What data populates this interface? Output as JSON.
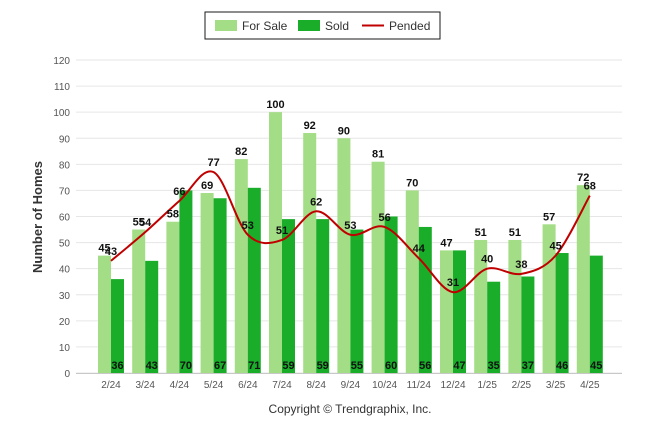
{
  "chart_data": {
    "type": "bar",
    "ylabel": "Number of Homes",
    "ylim": [
      0,
      120
    ],
    "yticks": [
      0,
      10,
      20,
      30,
      40,
      50,
      60,
      70,
      80,
      90,
      100,
      110,
      120
    ],
    "grid": true,
    "legend_position": "top-center",
    "categories": [
      "2/24",
      "3/24",
      "4/24",
      "5/24",
      "6/24",
      "7/24",
      "8/24",
      "9/24",
      "10/24",
      "11/24",
      "12/24",
      "1/25",
      "2/25",
      "3/25",
      "4/25"
    ],
    "series": [
      {
        "name": "For Sale",
        "type": "bar",
        "color": "#a3dd85",
        "values": [
          45,
          55,
          58,
          69,
          82,
          100,
          92,
          90,
          81,
          70,
          47,
          51,
          51,
          57,
          72
        ]
      },
      {
        "name": "Sold",
        "type": "bar",
        "color": "#1aad2a",
        "values": [
          36,
          43,
          70,
          67,
          71,
          59,
          59,
          55,
          60,
          56,
          47,
          35,
          37,
          46,
          45
        ]
      },
      {
        "name": "Pended",
        "type": "line",
        "color": "#c00000",
        "values": [
          43,
          54,
          66,
          77,
          53,
          51,
          62,
          53,
          56,
          44,
          31,
          40,
          38,
          45,
          68
        ]
      }
    ],
    "footer": "Copyright © Trendgraphix, Inc."
  }
}
